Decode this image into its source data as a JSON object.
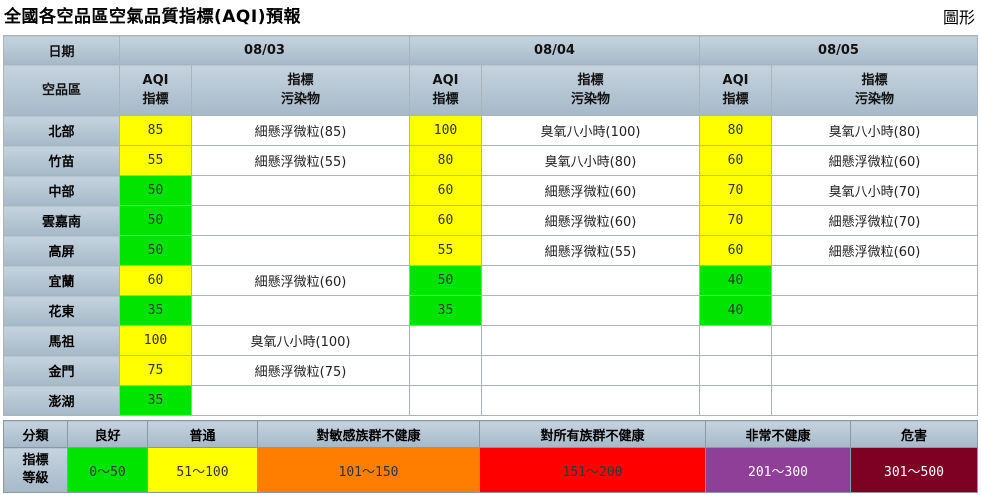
{
  "header": {
    "title": "全國各空品區空氣品質指標(AQI)預報",
    "view_link": "圖形"
  },
  "table": {
    "date_label": "日期",
    "region_label": "空品區",
    "aqi_label_1": "AQI",
    "aqi_label_2": "指標",
    "pol_label_1": "指標",
    "pol_label_2": "污染物",
    "dates": [
      "08/03",
      "08/04",
      "08/05"
    ],
    "rows": [
      {
        "region": "北部",
        "d": [
          {
            "aqi": "85",
            "pol": "細懸浮微粒(85)",
            "color": "yellow"
          },
          {
            "aqi": "100",
            "pol": "臭氧八小時(100)",
            "color": "yellow"
          },
          {
            "aqi": "80",
            "pol": "臭氧八小時(80)",
            "color": "yellow"
          }
        ]
      },
      {
        "region": "竹苗",
        "d": [
          {
            "aqi": "55",
            "pol": "細懸浮微粒(55)",
            "color": "yellow"
          },
          {
            "aqi": "80",
            "pol": "臭氧八小時(80)",
            "color": "yellow"
          },
          {
            "aqi": "60",
            "pol": "細懸浮微粒(60)",
            "color": "yellow"
          }
        ]
      },
      {
        "region": "中部",
        "d": [
          {
            "aqi": "50",
            "pol": "",
            "color": "green"
          },
          {
            "aqi": "60",
            "pol": "細懸浮微粒(60)",
            "color": "yellow"
          },
          {
            "aqi": "70",
            "pol": "臭氧八小時(70)",
            "color": "yellow"
          }
        ]
      },
      {
        "region": "雲嘉南",
        "d": [
          {
            "aqi": "50",
            "pol": "",
            "color": "green"
          },
          {
            "aqi": "60",
            "pol": "細懸浮微粒(60)",
            "color": "yellow"
          },
          {
            "aqi": "70",
            "pol": "細懸浮微粒(70)",
            "color": "yellow"
          }
        ]
      },
      {
        "region": "高屏",
        "d": [
          {
            "aqi": "50",
            "pol": "",
            "color": "green"
          },
          {
            "aqi": "55",
            "pol": "細懸浮微粒(55)",
            "color": "yellow"
          },
          {
            "aqi": "60",
            "pol": "細懸浮微粒(60)",
            "color": "yellow"
          }
        ]
      },
      {
        "region": "宜蘭",
        "d": [
          {
            "aqi": "60",
            "pol": "細懸浮微粒(60)",
            "color": "yellow"
          },
          {
            "aqi": "50",
            "pol": "",
            "color": "green"
          },
          {
            "aqi": "40",
            "pol": "",
            "color": "green"
          }
        ]
      },
      {
        "region": "花東",
        "d": [
          {
            "aqi": "35",
            "pol": "",
            "color": "green"
          },
          {
            "aqi": "35",
            "pol": "",
            "color": "green"
          },
          {
            "aqi": "40",
            "pol": "",
            "color": "green"
          }
        ]
      },
      {
        "region": "馬祖",
        "d": [
          {
            "aqi": "100",
            "pol": "臭氧八小時(100)",
            "color": "yellow"
          },
          {
            "aqi": "",
            "pol": "",
            "color": ""
          },
          {
            "aqi": "",
            "pol": "",
            "color": ""
          }
        ]
      },
      {
        "region": "金門",
        "d": [
          {
            "aqi": "75",
            "pol": "細懸浮微粒(75)",
            "color": "yellow"
          },
          {
            "aqi": "",
            "pol": "",
            "color": ""
          },
          {
            "aqi": "",
            "pol": "",
            "color": ""
          }
        ]
      },
      {
        "region": "澎湖",
        "d": [
          {
            "aqi": "35",
            "pol": "",
            "color": "green"
          },
          {
            "aqi": "",
            "pol": "",
            "color": ""
          },
          {
            "aqi": "",
            "pol": "",
            "color": ""
          }
        ]
      }
    ]
  },
  "legend": {
    "category_label": "分類",
    "level_label_1": "指標",
    "level_label_2": "等級",
    "items": [
      {
        "name": "良好",
        "range": "0～50",
        "bg": "#00e400",
        "fg": "#333333"
      },
      {
        "name": "普通",
        "range": "51～100",
        "bg": "#ffff00",
        "fg": "#333333"
      },
      {
        "name": "對敏感族群不健康",
        "range": "101～150",
        "bg": "#ff7e00",
        "fg": "#333333"
      },
      {
        "name": "對所有族群不健康",
        "range": "151～200",
        "bg": "#ff0000",
        "fg": "#333333"
      },
      {
        "name": "非常不健康",
        "range": "201～300",
        "bg": "#8f3f97",
        "fg": "#ffffff"
      },
      {
        "name": "危害",
        "range": "301～500",
        "bg": "#7e0023",
        "fg": "#ffffff"
      }
    ]
  }
}
